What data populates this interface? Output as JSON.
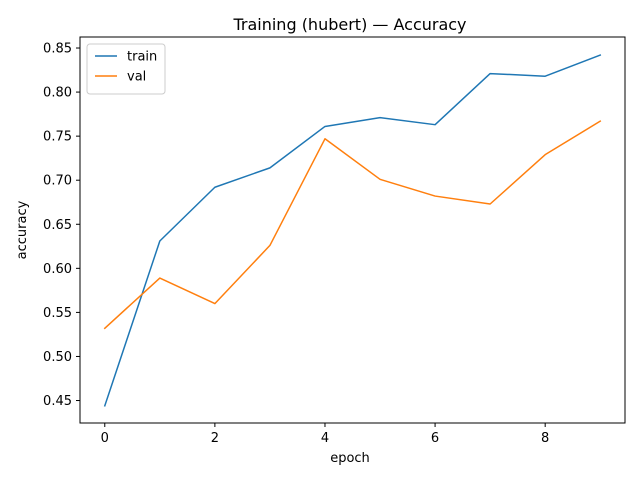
{
  "chart_data": {
    "type": "line",
    "title": "Training (hubert) — Accuracy",
    "xlabel": "epoch",
    "ylabel": "accuracy",
    "x": [
      0,
      1,
      2,
      3,
      4,
      5,
      6,
      7,
      8,
      9
    ],
    "xlim": [
      -0.45,
      9.45
    ],
    "ylim": [
      0.4245,
      0.8625
    ],
    "xticks": [
      0,
      2,
      4,
      6,
      8
    ],
    "xtick_labels": [
      "0",
      "2",
      "4",
      "6",
      "8"
    ],
    "yticks": [
      0.45,
      0.5,
      0.55,
      0.6,
      0.65,
      0.7,
      0.75,
      0.8,
      0.85
    ],
    "ytick_labels": [
      "0.45",
      "0.50",
      "0.55",
      "0.60",
      "0.65",
      "0.70",
      "0.75",
      "0.80",
      "0.85"
    ],
    "grid": false,
    "legend_position": "top-left",
    "series": [
      {
        "name": "train",
        "color": "#1f77b4",
        "values": [
          0.444,
          0.631,
          0.692,
          0.714,
          0.761,
          0.771,
          0.763,
          0.821,
          0.818,
          0.842
        ]
      },
      {
        "name": "val",
        "color": "#ff7f0e",
        "values": [
          0.532,
          0.589,
          0.56,
          0.626,
          0.747,
          0.701,
          0.682,
          0.673,
          0.729,
          0.767
        ]
      }
    ]
  }
}
